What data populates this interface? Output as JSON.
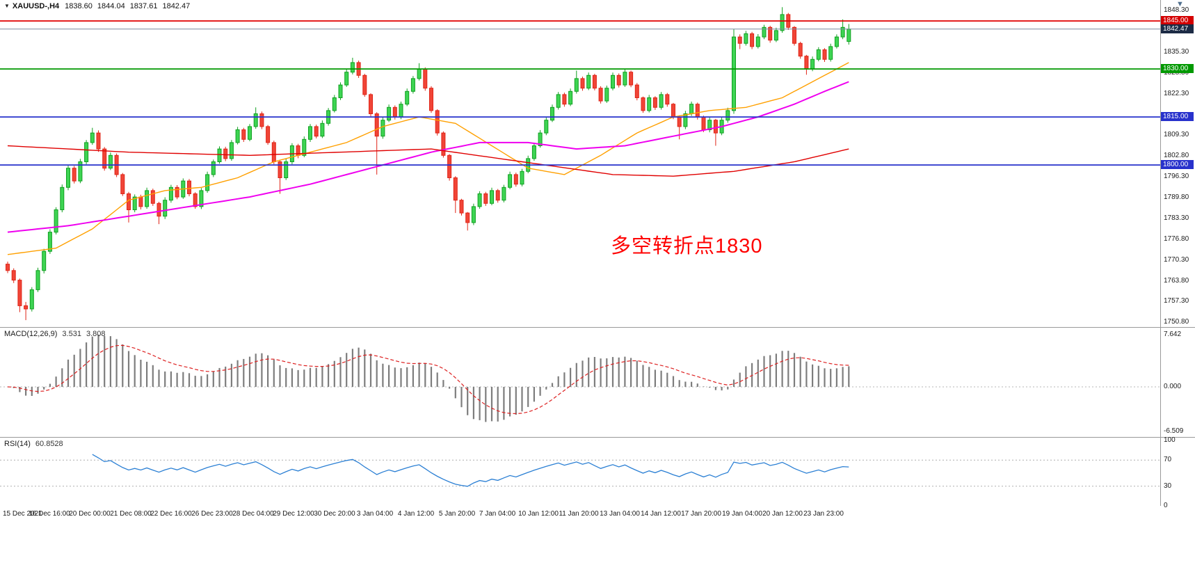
{
  "header": {
    "symbol": "XAUUSD-,H4",
    "ohlc": {
      "open": "1838.60",
      "high": "1844.04",
      "low": "1837.61",
      "close": "1842.47"
    }
  },
  "icons": {
    "symbol_dropdown": "▼",
    "chart_menu": "▼"
  },
  "annotation": {
    "text": "多空转折点1830",
    "color": "#ff0000"
  },
  "chart_data": [
    {
      "type": "candlestick",
      "symbol": "XAUUSD-",
      "timeframe": "H4",
      "current_ohlc": {
        "open": 1838.6,
        "high": 1844.04,
        "low": 1837.61,
        "close": 1842.47
      },
      "ylim": [
        1749.35,
        1851.55
      ],
      "y_ticks": [
        "1848.30",
        "1841.80",
        "1835.30",
        "1828.80",
        "1822.30",
        "1815.80",
        "1809.30",
        "1802.80",
        "1796.30",
        "1789.80",
        "1783.30",
        "1776.80",
        "1770.30",
        "1763.80",
        "1757.30",
        "1750.80"
      ],
      "x_labels": [
        "15 Dec 2021",
        "16 Dec 16:00",
        "20 Dec 00:00",
        "21 Dec 08:00",
        "22 Dec 16:00",
        "26 Dec 23:00",
        "28 Dec 04:00",
        "29 Dec 12:00",
        "30 Dec 20:00",
        "3 Jan 04:00",
        "4 Jan 12:00",
        "5 Jan 20:00",
        "7 Jan 04:00",
        "10 Jan 12:00",
        "11 Jan 20:00",
        "13 Jan 04:00",
        "14 Jan 12:00",
        "17 Jan 20:00",
        "19 Jan 04:00",
        "20 Jan 12:00",
        "23 Jan 23:00"
      ],
      "colors": {
        "up": "#0fa01f",
        "up_fill": "#3ed453",
        "down": "#e02417",
        "down_fill": "#f04537",
        "background": "#ffffff",
        "axis_text": "#1a1a1a"
      },
      "levels": [
        {
          "price": 1845.0,
          "label": "1845.00",
          "color": "#e00000",
          "label_bg": "#d40000",
          "width": 1.8
        },
        {
          "price": 1842.47,
          "label": "1842.47",
          "color": "#7a8aa0",
          "label_bg": "#1c2b45",
          "width": 1,
          "current": true
        },
        {
          "price": 1830.0,
          "label": "1830.00",
          "color": "#009900",
          "label_bg": "#009900",
          "width": 1.8
        },
        {
          "price": 1815.0,
          "label": "1815.00",
          "color": "#2832cc",
          "label_bg": "#2832cc",
          "width": 1.8
        },
        {
          "price": 1800.0,
          "label": "1800.00",
          "color": "#2832cc",
          "label_bg": "#2832cc",
          "width": 1.8
        }
      ],
      "moving_averages": [
        {
          "name": "ma-orange",
          "color": "#ffa000",
          "width": 1.4,
          "points": [
            [
              0,
              1772
            ],
            [
              8,
              1774
            ],
            [
              14,
              1780
            ],
            [
              20,
              1789
            ],
            [
              26,
              1792
            ],
            [
              32,
              1793
            ],
            [
              38,
              1796
            ],
            [
              44,
              1801
            ],
            [
              50,
              1804
            ],
            [
              56,
              1807
            ],
            [
              62,
              1812
            ],
            [
              68,
              1815
            ],
            [
              74,
              1813
            ],
            [
              80,
              1806
            ],
            [
              86,
              1799
            ],
            [
              92,
              1797
            ],
            [
              98,
              1803
            ],
            [
              104,
              1810
            ],
            [
              110,
              1815
            ],
            [
              116,
              1817
            ],
            [
              122,
              1818
            ],
            [
              128,
              1821
            ],
            [
              134,
              1827
            ],
            [
              139,
              1832
            ]
          ]
        },
        {
          "name": "ma-magenta",
          "color": "#ef00ef",
          "width": 2,
          "points": [
            [
              0,
              1779
            ],
            [
              10,
              1781
            ],
            [
              20,
              1784
            ],
            [
              30,
              1787
            ],
            [
              40,
              1790
            ],
            [
              50,
              1794
            ],
            [
              60,
              1799
            ],
            [
              70,
              1804
            ],
            [
              78,
              1807
            ],
            [
              86,
              1807
            ],
            [
              94,
              1805
            ],
            [
              102,
              1806
            ],
            [
              110,
              1809
            ],
            [
              118,
              1812
            ],
            [
              124,
              1815
            ],
            [
              130,
              1819
            ],
            [
              135,
              1823
            ],
            [
              139,
              1826
            ]
          ]
        },
        {
          "name": "ma-red",
          "color": "#e00000",
          "width": 1.4,
          "points": [
            [
              0,
              1806
            ],
            [
              20,
              1804
            ],
            [
              40,
              1803
            ],
            [
              55,
              1804
            ],
            [
              70,
              1805
            ],
            [
              85,
              1801
            ],
            [
              100,
              1797
            ],
            [
              110,
              1796.5
            ],
            [
              120,
              1798
            ],
            [
              130,
              1801
            ],
            [
              139,
              1805
            ]
          ]
        }
      ],
      "candles": [
        [
          1769,
          1769.8,
          1766.2,
          1767
        ],
        [
          1767,
          1767.7,
          1763.1,
          1764
        ],
        [
          1764,
          1764.5,
          1754,
          1756
        ],
        [
          1756,
          1757.2,
          1751.5,
          1755
        ],
        [
          1755,
          1761.8,
          1754.2,
          1761
        ],
        [
          1761,
          1767.9,
          1760.3,
          1767
        ],
        [
          1767,
          1773.8,
          1766.1,
          1773
        ],
        [
          1773,
          1779.9,
          1772.2,
          1779
        ],
        [
          1779,
          1786.8,
          1778.3,
          1786
        ],
        [
          1786,
          1793.9,
          1785.2,
          1793
        ],
        [
          1793,
          1799.8,
          1792.1,
          1799
        ],
        [
          1799,
          1799.7,
          1794.2,
          1795
        ],
        [
          1795,
          1801.9,
          1794.3,
          1801
        ],
        [
          1801,
          1807.8,
          1800.2,
          1807
        ],
        [
          1807,
          1811.6,
          1806.3,
          1810
        ],
        [
          1810,
          1810.8,
          1804.1,
          1805
        ],
        [
          1805,
          1805.6,
          1798.2,
          1799
        ],
        [
          1799,
          1803.9,
          1798.4,
          1803
        ],
        [
          1803,
          1803.6,
          1796.2,
          1797
        ],
        [
          1797,
          1797.5,
          1790.3,
          1791
        ],
        [
          1791,
          1791.6,
          1782,
          1786
        ],
        [
          1786,
          1790.8,
          1785.2,
          1790
        ],
        [
          1790,
          1790.7,
          1786.1,
          1787
        ],
        [
          1787,
          1792.9,
          1786.3,
          1792
        ],
        [
          1792,
          1792.6,
          1787.2,
          1788
        ],
        [
          1788,
          1788.5,
          1781.5,
          1784
        ],
        [
          1784,
          1789.9,
          1783.1,
          1789
        ],
        [
          1789,
          1793.8,
          1788.2,
          1793
        ],
        [
          1793,
          1793.7,
          1789.3,
          1790
        ],
        [
          1790,
          1795.8,
          1789.4,
          1795
        ],
        [
          1795,
          1795.6,
          1790.2,
          1791
        ],
        [
          1791,
          1791.5,
          1786.3,
          1787
        ],
        [
          1787,
          1792.8,
          1786.2,
          1792
        ],
        [
          1792,
          1797.9,
          1791.3,
          1797
        ],
        [
          1797,
          1801.7,
          1796.2,
          1801
        ],
        [
          1801,
          1805.8,
          1800.4,
          1805
        ],
        [
          1805,
          1805.7,
          1801.2,
          1802
        ],
        [
          1802,
          1807.8,
          1801.3,
          1807
        ],
        [
          1807,
          1811.9,
          1806.4,
          1811
        ],
        [
          1811,
          1811.6,
          1807.2,
          1808
        ],
        [
          1808,
          1812.8,
          1807.4,
          1812
        ],
        [
          1812,
          1818,
          1811.3,
          1816
        ],
        [
          1816,
          1816.7,
          1811.2,
          1812
        ],
        [
          1812,
          1812.5,
          1806.3,
          1807
        ],
        [
          1807,
          1807.6,
          1800.2,
          1801
        ],
        [
          1801,
          1801.4,
          1791,
          1796
        ],
        [
          1796,
          1801.9,
          1795.3,
          1801
        ],
        [
          1801,
          1806.8,
          1800.2,
          1806
        ],
        [
          1806,
          1806.6,
          1802.1,
          1803
        ],
        [
          1803,
          1808.9,
          1802.4,
          1808
        ],
        [
          1808,
          1812.8,
          1807.2,
          1812
        ],
        [
          1812,
          1812.6,
          1808.3,
          1809
        ],
        [
          1809,
          1813.9,
          1808.4,
          1813
        ],
        [
          1813,
          1817.8,
          1812.3,
          1817
        ],
        [
          1817,
          1821.9,
          1816.4,
          1821
        ],
        [
          1821,
          1825.8,
          1820.3,
          1825
        ],
        [
          1825,
          1829.9,
          1824.4,
          1829
        ],
        [
          1829,
          1833.5,
          1828.3,
          1832
        ],
        [
          1832,
          1832.6,
          1827.2,
          1828
        ],
        [
          1828,
          1828.5,
          1821.3,
          1822
        ],
        [
          1822,
          1822.4,
          1815.2,
          1816
        ],
        [
          1816,
          1816.5,
          1797,
          1809
        ],
        [
          1809,
          1814.8,
          1808.2,
          1814
        ],
        [
          1814,
          1818.9,
          1813.4,
          1818
        ],
        [
          1818,
          1818.6,
          1814.2,
          1815
        ],
        [
          1815,
          1819.8,
          1814.3,
          1819
        ],
        [
          1819,
          1823.9,
          1818.4,
          1823
        ],
        [
          1823,
          1827.8,
          1822.3,
          1827
        ],
        [
          1827,
          1831.8,
          1826.4,
          1830
        ],
        [
          1830,
          1830.5,
          1823.2,
          1824
        ],
        [
          1824,
          1824.6,
          1816.3,
          1817
        ],
        [
          1817,
          1817.4,
          1809.2,
          1810
        ],
        [
          1810,
          1810.5,
          1802.3,
          1803
        ],
        [
          1803,
          1803.4,
          1795.1,
          1796
        ],
        [
          1796,
          1796.5,
          1785,
          1789
        ],
        [
          1789,
          1789.4,
          1784.2,
          1785
        ],
        [
          1785,
          1785.3,
          1779.5,
          1782
        ],
        [
          1782,
          1787.9,
          1781.2,
          1787
        ],
        [
          1787,
          1791.8,
          1786.3,
          1791
        ],
        [
          1791,
          1791.6,
          1787.2,
          1788
        ],
        [
          1788,
          1792.9,
          1787.4,
          1792
        ],
        [
          1792,
          1792.5,
          1788.2,
          1789
        ],
        [
          1789,
          1793.8,
          1788.3,
          1793
        ],
        [
          1793,
          1797.9,
          1792.4,
          1797
        ],
        [
          1797,
          1797.6,
          1793.2,
          1794
        ],
        [
          1794,
          1798.8,
          1793.3,
          1798
        ],
        [
          1798,
          1802.9,
          1797.4,
          1802
        ],
        [
          1802,
          1806.8,
          1801.3,
          1806
        ],
        [
          1806,
          1810.9,
          1805.4,
          1810
        ],
        [
          1810,
          1814.8,
          1809.3,
          1814
        ],
        [
          1814,
          1818.9,
          1813.4,
          1818
        ],
        [
          1818,
          1822.8,
          1817.3,
          1822
        ],
        [
          1822,
          1822.6,
          1818.2,
          1819
        ],
        [
          1819,
          1823.9,
          1818.4,
          1823
        ],
        [
          1823,
          1829.5,
          1822.3,
          1827
        ],
        [
          1827,
          1827.6,
          1823.2,
          1824
        ],
        [
          1824,
          1828.9,
          1823.4,
          1828
        ],
        [
          1828,
          1828.5,
          1823.3,
          1824
        ],
        [
          1824,
          1824.6,
          1819.2,
          1820
        ],
        [
          1820,
          1824.8,
          1819.4,
          1824
        ],
        [
          1824,
          1828.9,
          1823.3,
          1828
        ],
        [
          1828,
          1828.6,
          1824.2,
          1825
        ],
        [
          1825,
          1829.8,
          1824.4,
          1829
        ],
        [
          1829,
          1829.5,
          1824.3,
          1825
        ],
        [
          1825,
          1825.6,
          1820.2,
          1821
        ],
        [
          1821,
          1821.4,
          1816.3,
          1817
        ],
        [
          1817,
          1821.9,
          1816.4,
          1821
        ],
        [
          1821,
          1821.5,
          1817.2,
          1818
        ],
        [
          1818,
          1822.8,
          1817.3,
          1822
        ],
        [
          1822,
          1822.5,
          1818.2,
          1819
        ],
        [
          1819,
          1819.4,
          1814.3,
          1815
        ],
        [
          1815,
          1815.5,
          1808,
          1812
        ],
        [
          1812,
          1816.9,
          1811.2,
          1816
        ],
        [
          1816,
          1819.8,
          1815.3,
          1819
        ],
        [
          1819,
          1819.5,
          1814.2,
          1815
        ],
        [
          1815,
          1815.4,
          1810.3,
          1811
        ],
        [
          1811,
          1814.9,
          1810.2,
          1814
        ],
        [
          1814,
          1814.4,
          1806,
          1810
        ],
        [
          1810,
          1814.8,
          1809.3,
          1814
        ],
        [
          1814,
          1817.9,
          1813.2,
          1817
        ],
        [
          1817,
          1842.5,
          1816,
          1840
        ],
        [
          1840,
          1840.8,
          1836.2,
          1838
        ],
        [
          1838,
          1841.9,
          1837.3,
          1841
        ],
        [
          1841,
          1841.6,
          1836.2,
          1837
        ],
        [
          1837,
          1840.9,
          1836.4,
          1840
        ],
        [
          1840,
          1843.8,
          1839.3,
          1843
        ],
        [
          1843,
          1843.5,
          1838.2,
          1839
        ],
        [
          1839,
          1842.9,
          1838.4,
          1842
        ],
        [
          1842,
          1849.3,
          1841.3,
          1847
        ],
        [
          1847,
          1847.5,
          1842.2,
          1843
        ],
        [
          1843,
          1843.4,
          1837.3,
          1838
        ],
        [
          1838,
          1838.5,
          1833.2,
          1834
        ],
        [
          1834,
          1834.4,
          1828.2,
          1830
        ],
        [
          1830,
          1833.9,
          1829.3,
          1833
        ],
        [
          1833,
          1836.8,
          1832.4,
          1836
        ],
        [
          1836,
          1836.5,
          1832.2,
          1833
        ],
        [
          1833,
          1837.9,
          1832.3,
          1837
        ],
        [
          1837,
          1840.8,
          1836.4,
          1840
        ],
        [
          1840,
          1845.5,
          1839.3,
          1843
        ],
        [
          1838.6,
          1844.04,
          1837.61,
          1842.47
        ]
      ]
    },
    {
      "type": "bar",
      "name": "MACD",
      "label": "MACD(12,26,9)",
      "params": {
        "fast": 12,
        "slow": 26,
        "signal": 9
      },
      "main_value": "3.531",
      "signal_value": "3.808",
      "y_ticks": [
        "7.642",
        "0.000",
        "-6.509"
      ],
      "ylim": [
        -7.33,
        8.75
      ],
      "hist_color": "#7d7d7d",
      "signal_color": "#dd2020",
      "derived_from": "candles"
    },
    {
      "type": "line",
      "name": "RSI",
      "label": "RSI(14)",
      "period": 14,
      "value": "60.8528",
      "levels": [
        70,
        30
      ],
      "y_ticks": [
        "100",
        "70",
        "30",
        "0"
      ],
      "line_color": "#2a7fd4",
      "derived_from": "candles"
    }
  ]
}
